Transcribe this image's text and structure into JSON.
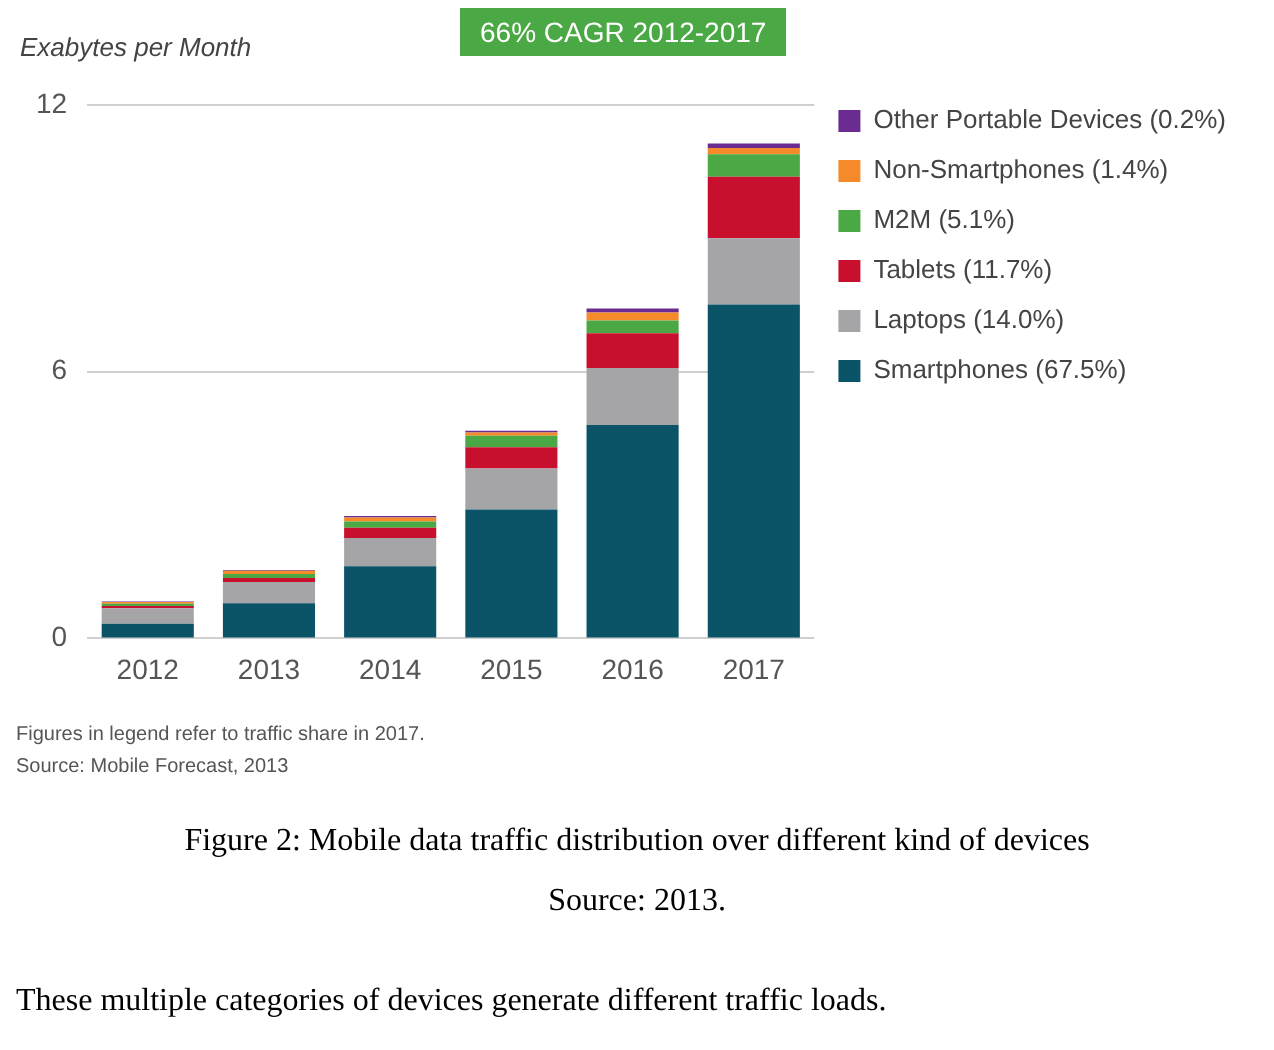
{
  "chart_data": {
    "type": "bar",
    "ylabel": "Exabytes per Month",
    "categories": [
      "2012",
      "2013",
      "2014",
      "2015",
      "2016",
      "2017"
    ],
    "series": [
      {
        "name": "Smartphones (67.5%)",
        "color": "#0b5468",
        "values": [
          0.33,
          0.79,
          1.62,
          2.9,
          4.8,
          7.51
        ]
      },
      {
        "name": "Laptops (14.0%)",
        "color": "#a5a5a8",
        "values": [
          0.35,
          0.48,
          0.64,
          0.92,
          1.28,
          1.49
        ]
      },
      {
        "name": "Tablets (11.7%)",
        "color": "#c8102e",
        "values": [
          0.05,
          0.09,
          0.23,
          0.48,
          0.78,
          1.38
        ]
      },
      {
        "name": "M2M (5.1%)",
        "color": "#4aa845",
        "values": [
          0.05,
          0.09,
          0.14,
          0.26,
          0.29,
          0.51
        ]
      },
      {
        "name": "Non-Smartphones (1.4%)",
        "color": "#f58a2b",
        "values": [
          0.04,
          0.07,
          0.09,
          0.07,
          0.18,
          0.14
        ]
      },
      {
        "name": "Other Portable Devices (0.2%)",
        "color": "#6a2c91",
        "values": [
          0.01,
          0.02,
          0.03,
          0.04,
          0.09,
          0.1
        ]
      }
    ],
    "stacked": true,
    "ylim": [
      0,
      12
    ],
    "yticks": [
      0,
      6,
      12
    ],
    "grid": "y",
    "legend": "right",
    "annotations": [
      "66% CAGR 2012-2017",
      "Figures in legend refer to traffic share in 2017.",
      "Source: Mobile Forecast, 2013",
      "Figure 2: Mobile data traffic distribution over different kind of devices",
      "Source: 2013.",
      "These multiple categories of devices generate different traffic loads."
    ]
  }
}
